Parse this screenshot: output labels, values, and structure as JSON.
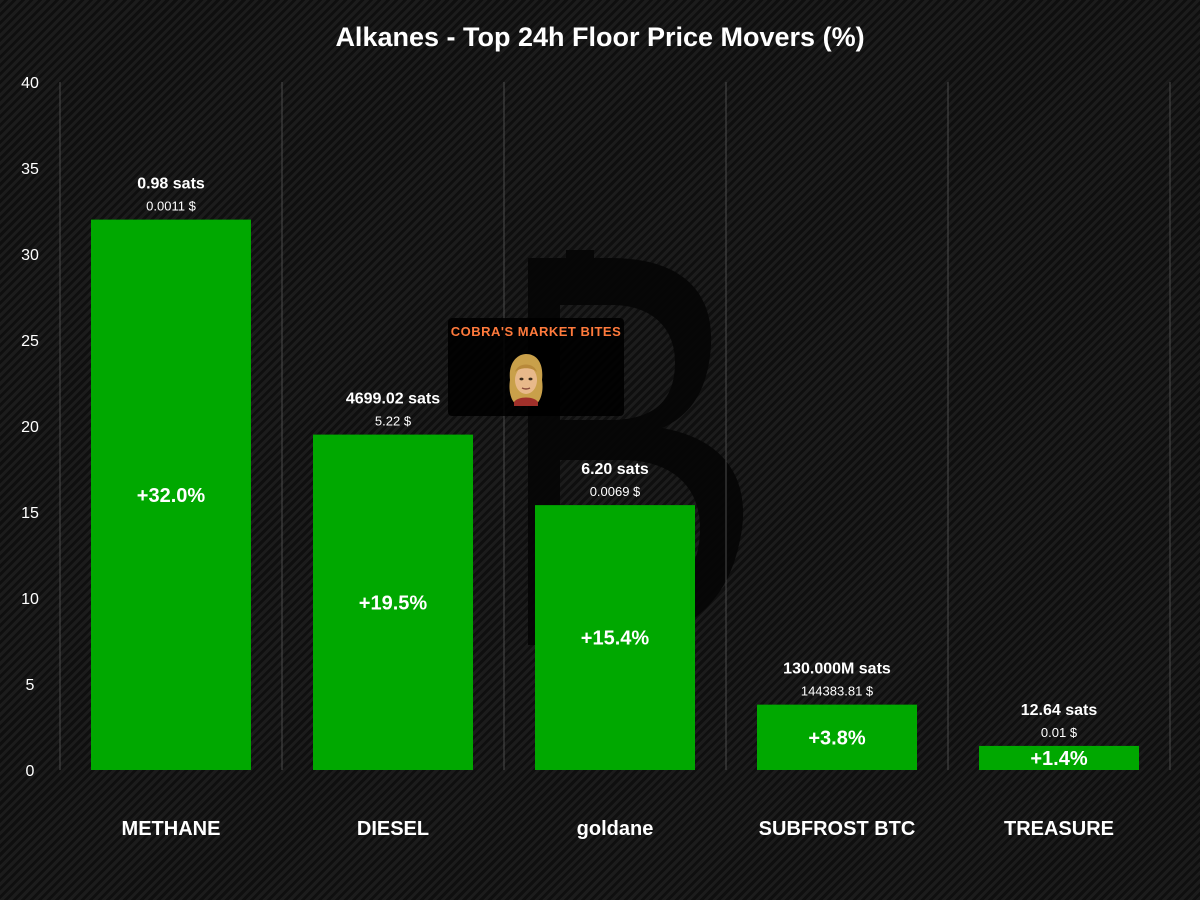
{
  "chart_data": {
    "type": "bar",
    "title": "Alkanes - Top 24h Floor Price Movers (%)",
    "xlabel": "",
    "ylabel": "",
    "ylim": [
      0,
      40
    ],
    "yticks": [
      0,
      5,
      10,
      15,
      20,
      25,
      30,
      35,
      40
    ],
    "grid": "vertical",
    "legend": "none",
    "bar_color": "#00a800",
    "categories": [
      "METHANE",
      "DIESEL",
      "goldane",
      "SUBFROST BTC",
      "TREASURE"
    ],
    "values": [
      32.0,
      19.5,
      15.4,
      3.8,
      1.4
    ],
    "value_labels": [
      "+32.0%",
      "+19.5%",
      "+15.4%",
      "+3.8%",
      "+1.4%"
    ],
    "price_sats": [
      "0.98 sats",
      "4699.02 sats",
      "6.20 sats",
      "130.000M sats",
      "12.64 sats"
    ],
    "price_usd": [
      "0.0011 $",
      "5.22 $",
      "0.0069 $",
      "144383.81 $",
      "0.01 $"
    ]
  },
  "watermark": {
    "text": "COBRA'S MARKET BITES",
    "accent": "#ff7a3c",
    "icon": "bitcoin-logo-icon"
  }
}
